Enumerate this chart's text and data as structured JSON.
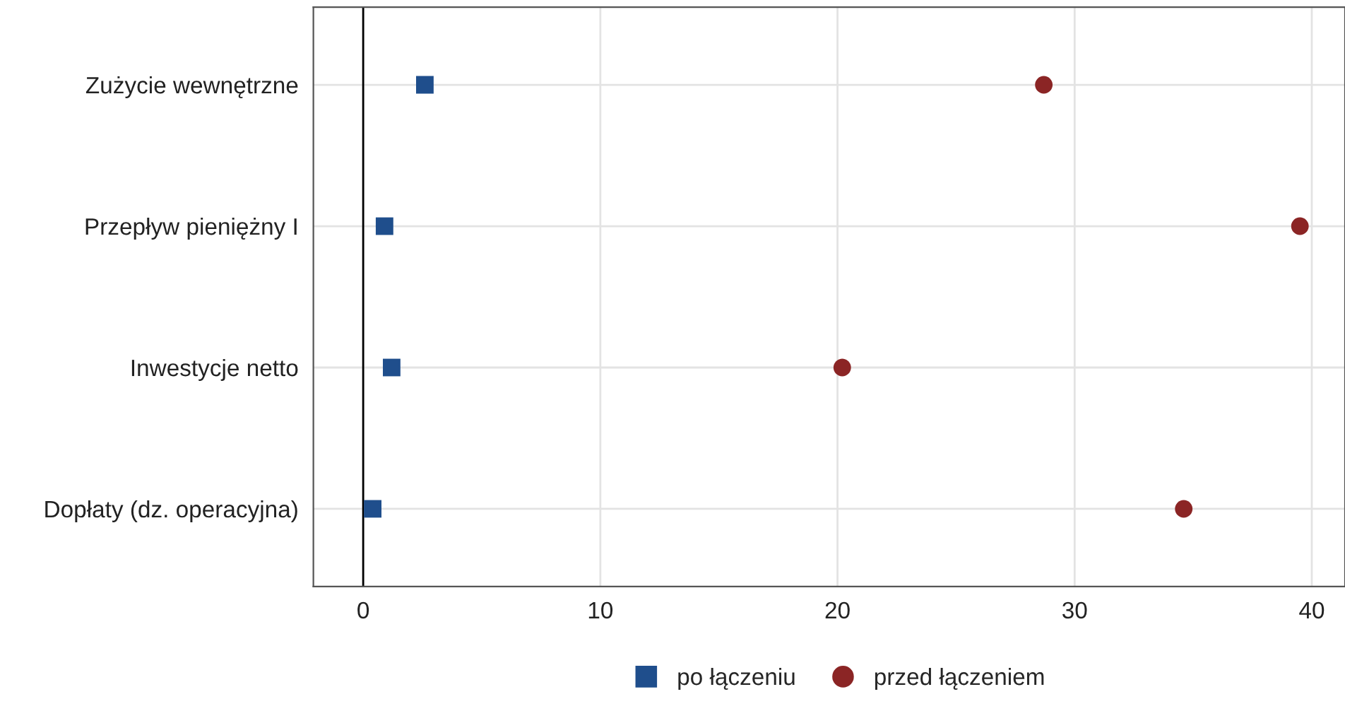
{
  "chart_data": {
    "type": "scatter",
    "orientation": "horizontal",
    "categories": [
      "Zużycie wewnętrzne",
      "Przepływ pieniężny I",
      "Inwestycje netto",
      "Dopłaty (dz. operacyjna)"
    ],
    "series": [
      {
        "name": "po łączeniu",
        "color": "#1f4e8c",
        "marker": "square",
        "values": [
          2.6,
          0.9,
          1.2,
          0.4
        ]
      },
      {
        "name": "przed łączeniem",
        "color": "#8b2525",
        "marker": "circle",
        "values": [
          28.7,
          39.5,
          20.2,
          34.6
        ]
      }
    ],
    "xlim": [
      -2.1,
      41.4
    ],
    "xticks": [
      0,
      10,
      20,
      30,
      40
    ],
    "ref_lines": [
      {
        "axis": "x",
        "value": 0,
        "color": "#000000"
      }
    ],
    "grid": true,
    "legend": "bottom"
  }
}
